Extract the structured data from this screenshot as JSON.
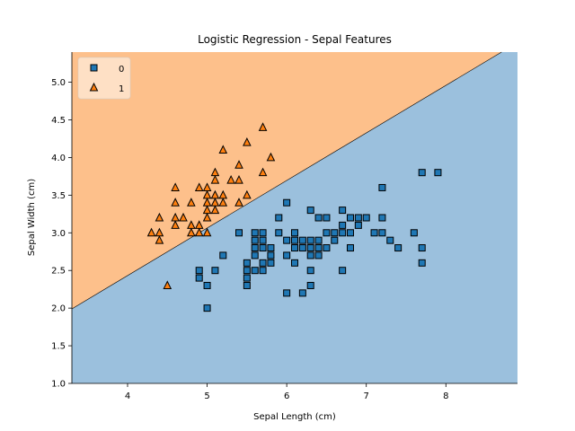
{
  "chart_data": {
    "type": "scatter",
    "title": "Logistic Regression - Sepal Features",
    "xlabel": "Sepal Length (cm)",
    "ylabel": "Sepal Width (cm)",
    "xlim": [
      3.3,
      8.9
    ],
    "ylim": [
      1.0,
      5.4
    ],
    "xticks": [
      "4",
      "5",
      "6",
      "7",
      "8"
    ],
    "yticks": [
      "1.0",
      "1.5",
      "2.0",
      "2.5",
      "3.0",
      "3.5",
      "4.0",
      "4.5",
      "5.0"
    ],
    "grid": false,
    "legend_position": "top-left",
    "decision_boundary": {
      "x0": 3.3,
      "y0": 1.99,
      "x1": 8.7,
      "y1": 5.4
    },
    "regions": [
      {
        "class": "1",
        "side": "above",
        "color": "#fdc08b"
      },
      {
        "class": "0",
        "side": "below",
        "color": "#9bc0dd"
      }
    ],
    "series": [
      {
        "name": "0",
        "marker": "square",
        "color": "#1f77b4",
        "points": [
          [
            4.9,
            2.4
          ],
          [
            4.9,
            2.5
          ],
          [
            5.0,
            2.0
          ],
          [
            5.0,
            2.3
          ],
          [
            5.1,
            2.5
          ],
          [
            5.2,
            2.7
          ],
          [
            5.4,
            3.0
          ],
          [
            5.5,
            2.3
          ],
          [
            5.5,
            2.4
          ],
          [
            5.5,
            2.5
          ],
          [
            5.5,
            2.6
          ],
          [
            5.6,
            2.5
          ],
          [
            5.6,
            2.7
          ],
          [
            5.6,
            2.8
          ],
          [
            5.6,
            2.9
          ],
          [
            5.6,
            3.0
          ],
          [
            5.7,
            2.5
          ],
          [
            5.7,
            2.6
          ],
          [
            5.7,
            2.8
          ],
          [
            5.7,
            2.9
          ],
          [
            5.7,
            3.0
          ],
          [
            5.8,
            2.6
          ],
          [
            5.8,
            2.7
          ],
          [
            5.8,
            2.8
          ],
          [
            5.9,
            3.0
          ],
          [
            5.9,
            3.2
          ],
          [
            6.0,
            2.2
          ],
          [
            6.0,
            2.7
          ],
          [
            6.0,
            2.9
          ],
          [
            6.0,
            3.4
          ],
          [
            6.1,
            2.6
          ],
          [
            6.1,
            2.8
          ],
          [
            6.1,
            2.9
          ],
          [
            6.1,
            3.0
          ],
          [
            6.2,
            2.2
          ],
          [
            6.2,
            2.8
          ],
          [
            6.2,
            2.9
          ],
          [
            6.3,
            2.3
          ],
          [
            6.3,
            2.5
          ],
          [
            6.3,
            2.7
          ],
          [
            6.3,
            2.8
          ],
          [
            6.3,
            2.9
          ],
          [
            6.3,
            3.3
          ],
          [
            6.4,
            2.7
          ],
          [
            6.4,
            2.8
          ],
          [
            6.4,
            2.9
          ],
          [
            6.4,
            3.2
          ],
          [
            6.5,
            2.8
          ],
          [
            6.5,
            3.0
          ],
          [
            6.5,
            3.2
          ],
          [
            6.6,
            2.9
          ],
          [
            6.6,
            3.0
          ],
          [
            6.7,
            2.5
          ],
          [
            6.7,
            3.0
          ],
          [
            6.7,
            3.1
          ],
          [
            6.7,
            3.3
          ],
          [
            6.8,
            2.8
          ],
          [
            6.8,
            3.0
          ],
          [
            6.8,
            3.2
          ],
          [
            6.9,
            3.1
          ],
          [
            6.9,
            3.2
          ],
          [
            7.0,
            3.2
          ],
          [
            7.1,
            3.0
          ],
          [
            7.2,
            3.0
          ],
          [
            7.2,
            3.2
          ],
          [
            7.2,
            3.6
          ],
          [
            7.3,
            2.9
          ],
          [
            7.4,
            2.8
          ],
          [
            7.6,
            3.0
          ],
          [
            7.7,
            2.6
          ],
          [
            7.7,
            2.8
          ],
          [
            7.7,
            3.8
          ],
          [
            7.9,
            3.8
          ]
        ]
      },
      {
        "name": "1",
        "marker": "triangle",
        "color": "#ff7f0e",
        "points": [
          [
            4.3,
            3.0
          ],
          [
            4.4,
            2.9
          ],
          [
            4.4,
            3.0
          ],
          [
            4.4,
            3.2
          ],
          [
            4.5,
            2.3
          ],
          [
            4.6,
            3.1
          ],
          [
            4.6,
            3.2
          ],
          [
            4.6,
            3.4
          ],
          [
            4.6,
            3.6
          ],
          [
            4.7,
            3.2
          ],
          [
            4.8,
            3.0
          ],
          [
            4.8,
            3.1
          ],
          [
            4.8,
            3.4
          ],
          [
            4.9,
            3.0
          ],
          [
            4.9,
            3.1
          ],
          [
            4.9,
            3.6
          ],
          [
            5.0,
            3.0
          ],
          [
            5.0,
            3.2
          ],
          [
            5.0,
            3.3
          ],
          [
            5.0,
            3.4
          ],
          [
            5.0,
            3.5
          ],
          [
            5.0,
            3.6
          ],
          [
            5.1,
            3.3
          ],
          [
            5.1,
            3.4
          ],
          [
            5.1,
            3.5
          ],
          [
            5.1,
            3.7
          ],
          [
            5.1,
            3.8
          ],
          [
            5.2,
            3.4
          ],
          [
            5.2,
            3.5
          ],
          [
            5.2,
            4.1
          ],
          [
            5.3,
            3.7
          ],
          [
            5.4,
            3.4
          ],
          [
            5.4,
            3.7
          ],
          [
            5.4,
            3.9
          ],
          [
            5.5,
            3.5
          ],
          [
            5.5,
            4.2
          ],
          [
            5.7,
            3.8
          ],
          [
            5.7,
            4.4
          ],
          [
            5.8,
            4.0
          ]
        ]
      }
    ]
  }
}
